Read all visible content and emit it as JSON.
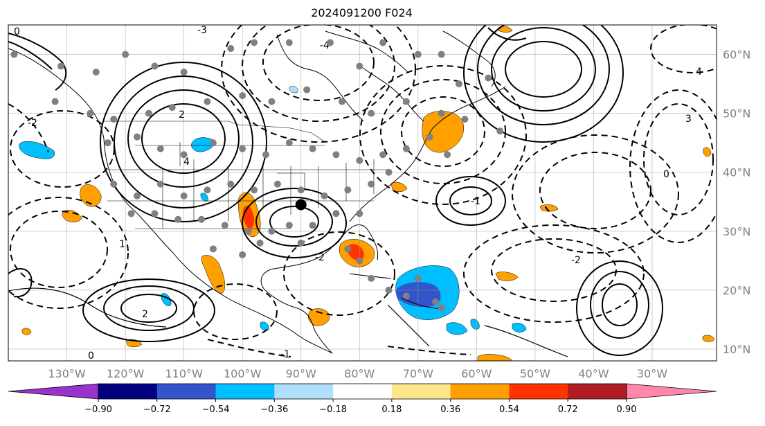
{
  "title": "2024091200 F024",
  "map": {
    "lon_range": [
      -140,
      -19
    ],
    "lat_range": [
      8,
      65
    ],
    "lat_labels": [
      "60°N",
      "50°N",
      "40°N",
      "30°N",
      "20°N",
      "10°N"
    ],
    "lat_values": [
      60,
      50,
      40,
      30,
      20,
      10
    ],
    "lon_labels": [
      "130°W",
      "120°W",
      "110°W",
      "100°W",
      "90°W",
      "80°W",
      "70°W",
      "60°W",
      "50°W",
      "40°W",
      "30°W"
    ],
    "lon_values": [
      -130,
      -120,
      -110,
      -100,
      -90,
      -80,
      -70,
      -60,
      -50,
      -40,
      -30
    ],
    "gridlines": true,
    "contour_labels": [
      "-2",
      "-1",
      "0",
      "2",
      "3",
      "4",
      "-3",
      "-4",
      "1"
    ],
    "storm_center": {
      "lon": -90,
      "lat": 34.5
    }
  },
  "colorbar": {
    "ticks": [
      "−0.90",
      "−0.72",
      "−0.54",
      "−0.36",
      "−0.18",
      "0.18",
      "0.36",
      "0.54",
      "0.72",
      "0.90"
    ],
    "colors": [
      "#9933cc",
      "#000080",
      "#3355cc",
      "#00bfff",
      "#aee0fb",
      "#ffffff",
      "#fde68a",
      "#ffa000",
      "#ff3300",
      "#b01c22",
      "#ff88aa"
    ],
    "extend": "both"
  }
}
